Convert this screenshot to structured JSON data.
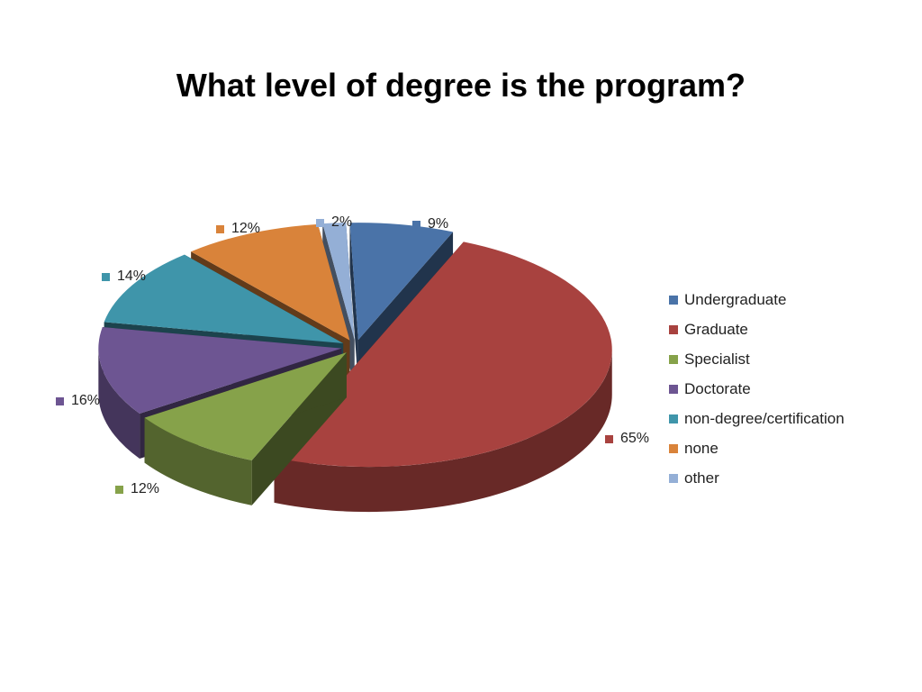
{
  "chart_data": {
    "type": "pie",
    "title": "What level of degree is the program?",
    "categories": [
      "Undergraduate",
      "Graduate",
      "Specialist",
      "Doctorate",
      "non-degree/certification",
      "none",
      "other"
    ],
    "values": [
      9,
      65,
      12,
      16,
      14,
      12,
      2
    ],
    "data_labels": [
      "9%",
      "65%",
      "12%",
      "16%",
      "14%",
      "12%",
      "2%"
    ],
    "colors": [
      "#4A73A8",
      "#A8423F",
      "#86A24A",
      "#6D5592",
      "#3F95AA",
      "#D9833A",
      "#94AFD6"
    ],
    "legend_position": "right",
    "exploded": true,
    "three_d": true
  }
}
